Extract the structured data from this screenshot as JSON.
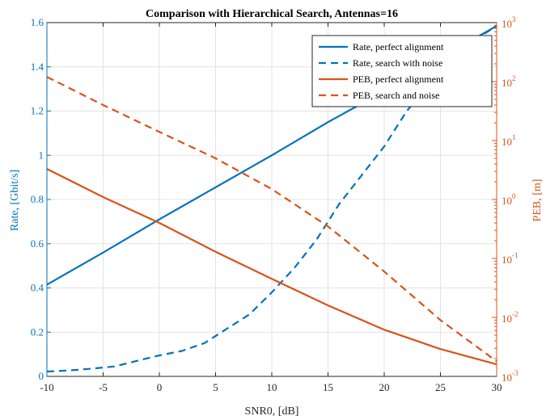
{
  "chart_data": {
    "type": "line",
    "title": "Comparison with Hierarchical Search, Antennas=16",
    "xlabel": "SNR0, [dB]",
    "ylabel_left": "Rate, [Gbit/s]",
    "ylabel_right": "PEB, [m]",
    "xlim": [
      -10,
      30
    ],
    "ylim_left": [
      0,
      1.6
    ],
    "ylim_right": [
      0.001,
      1000
    ],
    "right_scale": "log",
    "grid": true,
    "legend_position": "top-right",
    "x_ticks": [
      "-10",
      "-5",
      "0",
      "5",
      "10",
      "15",
      "20",
      "25",
      "30"
    ],
    "y_left_ticks": [
      "0",
      "0.2",
      "0.4",
      "0.6",
      "0.8",
      "1",
      "1.2",
      "1.4",
      "1.6"
    ],
    "y_right_ticks": [
      {
        "base": "10",
        "exp": "-3"
      },
      {
        "base": "10",
        "exp": "-2"
      },
      {
        "base": "10",
        "exp": "-1"
      },
      {
        "base": "10",
        "exp": "0"
      },
      {
        "base": "10",
        "exp": "1"
      },
      {
        "base": "10",
        "exp": "2"
      },
      {
        "base": "10",
        "exp": "3"
      }
    ],
    "colors": {
      "rate": "#0072BD",
      "peb": "#D95319",
      "grid": "#e3e3e3",
      "axis": "#262626"
    },
    "series": [
      {
        "name": "Rate, perfect alignment",
        "axis": "left",
        "style": "solid",
        "color": "#0072BD",
        "x": [
          -10,
          -5,
          0,
          5,
          10,
          15,
          20,
          25,
          30
        ],
        "y": [
          0.415,
          0.56,
          0.71,
          0.855,
          1.0,
          1.15,
          1.29,
          1.44,
          1.585
        ]
      },
      {
        "name": "Rate, search with noise",
        "axis": "left",
        "style": "dashed",
        "color": "#0072BD",
        "x": [
          -10,
          -8,
          -6,
          -4,
          -2,
          0,
          2,
          4,
          6,
          8,
          10,
          12,
          14,
          16,
          18,
          20,
          22,
          24,
          26,
          28,
          30
        ],
        "y": [
          0.022,
          0.027,
          0.035,
          0.045,
          0.07,
          0.095,
          0.115,
          0.15,
          0.215,
          0.28,
          0.38,
          0.49,
          0.62,
          0.78,
          0.91,
          1.04,
          1.2,
          1.32,
          1.43,
          1.52,
          1.585
        ]
      },
      {
        "name": "PEB, perfect alignment",
        "axis": "right",
        "style": "solid",
        "color": "#D95319",
        "x": [
          -10,
          -5,
          0,
          5,
          10,
          15,
          20,
          25,
          30
        ],
        "y": [
          3.3,
          1.1,
          0.4,
          0.13,
          0.045,
          0.016,
          0.0062,
          0.0029,
          0.0016
        ]
      },
      {
        "name": "PEB, search and noise",
        "axis": "right",
        "style": "dashed",
        "color": "#D95319",
        "x": [
          -10,
          -5,
          0,
          5,
          10,
          15,
          20,
          25,
          30
        ],
        "y": [
          120,
          40,
          14,
          5,
          1.5,
          0.35,
          0.06,
          0.009,
          0.0018
        ]
      }
    ]
  }
}
